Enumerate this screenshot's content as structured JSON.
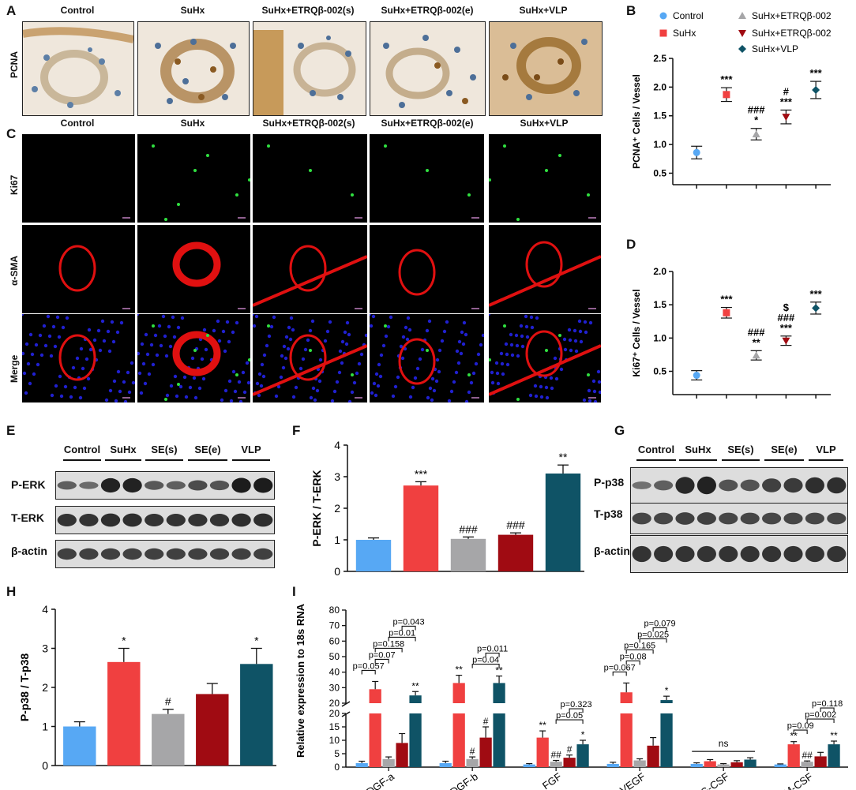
{
  "panels": {
    "A": "A",
    "B": "B",
    "C": "C",
    "D": "D",
    "E": "E",
    "F": "F",
    "G": "G",
    "H": "H",
    "I": "I"
  },
  "panel_a": {
    "columns": [
      "Control",
      "SuHx",
      "SuHx+ETRQβ-002(s)",
      "SuHx+ETRQβ-002(e)",
      "SuHx+VLP"
    ],
    "row_label": "PCNA"
  },
  "panel_c": {
    "columns": [
      "Control",
      "SuHx",
      "SuHx+ETRQβ-002(s)",
      "SuHx+ETRQβ-002(e)",
      "SuHx+VLP"
    ],
    "rows": [
      "Ki67",
      "α-SMA",
      "Merge"
    ]
  },
  "panel_e": {
    "groups": [
      "Control",
      "SuHx",
      "SE(s)",
      "SE(e)",
      "VLP"
    ],
    "rows": [
      "P-ERK",
      "T-ERK",
      "β-actin"
    ]
  },
  "panel_g": {
    "groups": [
      "Control",
      "SuHx",
      "SE(s)",
      "SE(e)",
      "VLP"
    ],
    "rows": [
      "P-p38",
      "T-p38",
      "β-actin"
    ]
  },
  "colors": {
    "control": "#57a8f4",
    "suhx": "#f04040",
    "se_s": "#a6a6a8",
    "se_e": "#a00b12",
    "vlp": "#0f5366",
    "fluo_red": "#e01010",
    "fluo_green": "#30e040",
    "fluo_blue": "#2020d0"
  },
  "chart_data": [
    {
      "id": "B",
      "type": "scatter",
      "ylabel": "PCNA⁺ Cells / Vessel",
      "ylim": [
        0.3,
        2.5
      ],
      "yticks": [
        0.5,
        1.0,
        1.5,
        2.0,
        2.5
      ],
      "legend": [
        "Control",
        "SuHx",
        "SuHx+ETRQβ-002",
        "SuHx+ETRQβ-002",
        "SuHx+VLP"
      ],
      "legend_position": "top",
      "series": [
        {
          "name": "Control",
          "mean": 0.86,
          "err": 0.11,
          "marker": "circle",
          "color": "#57a8f4",
          "annot": []
        },
        {
          "name": "SuHx",
          "mean": 1.87,
          "err": 0.12,
          "marker": "square",
          "color": "#f04040",
          "annot": [
            "***"
          ]
        },
        {
          "name": "SuHx+ETRQβ-002",
          "mean": 1.18,
          "err": 0.1,
          "marker": "triangle-up",
          "color": "#a6a6a8",
          "annot": [
            "*",
            "###"
          ]
        },
        {
          "name": "SuHx+ETRQβ-002",
          "mean": 1.48,
          "err": 0.12,
          "marker": "triangle-down",
          "color": "#a00b12",
          "annot": [
            "***",
            "#"
          ]
        },
        {
          "name": "SuHx+VLP",
          "mean": 1.95,
          "err": 0.15,
          "marker": "diamond",
          "color": "#0f5366",
          "annot": [
            "***"
          ]
        }
      ]
    },
    {
      "id": "D",
      "type": "scatter",
      "ylabel": "Ki67⁺ Cells / Vessel",
      "ylim": [
        0.15,
        2.0
      ],
      "yticks": [
        0.5,
        1.0,
        1.5,
        2.0
      ],
      "series": [
        {
          "mean": 0.44,
          "err": 0.07,
          "marker": "circle",
          "color": "#57a8f4",
          "annot": []
        },
        {
          "mean": 1.38,
          "err": 0.08,
          "marker": "square",
          "color": "#f04040",
          "annot": [
            "***"
          ]
        },
        {
          "mean": 0.74,
          "err": 0.07,
          "marker": "triangle-up",
          "color": "#a6a6a8",
          "annot": [
            "**",
            "###"
          ]
        },
        {
          "mean": 0.96,
          "err": 0.07,
          "marker": "triangle-down",
          "color": "#a00b12",
          "annot": [
            "***",
            "###",
            "$"
          ]
        },
        {
          "mean": 1.45,
          "err": 0.09,
          "marker": "diamond",
          "color": "#0f5366",
          "annot": [
            "***"
          ]
        }
      ]
    },
    {
      "id": "F",
      "type": "bar",
      "ylabel": "P-ERK / T-ERK",
      "ylim": [
        0,
        4
      ],
      "yticks": [
        0,
        1,
        2,
        3,
        4
      ],
      "values": [
        1.0,
        2.72,
        1.03,
        1.16,
        3.1
      ],
      "errors": [
        0.06,
        0.12,
        0.06,
        0.06,
        0.27
      ],
      "colors": [
        "#57a8f4",
        "#f04040",
        "#a6a6a8",
        "#a00b12",
        "#0f5366"
      ],
      "annot": [
        "",
        "***",
        "###",
        "###",
        "**"
      ]
    },
    {
      "id": "H",
      "type": "bar",
      "ylabel": "P-p38 / T-p38",
      "ylim": [
        0,
        4
      ],
      "yticks": [
        0,
        1,
        2,
        3,
        4
      ],
      "values": [
        1.0,
        2.65,
        1.32,
        1.83,
        2.6
      ],
      "errors": [
        0.12,
        0.35,
        0.12,
        0.27,
        0.4
      ],
      "colors": [
        "#57a8f4",
        "#f04040",
        "#a6a6a8",
        "#a00b12",
        "#0f5366"
      ],
      "annot": [
        "",
        "*",
        "#",
        "",
        "*"
      ]
    },
    {
      "id": "I",
      "type": "bar",
      "ylabel": "Relative expression to 18s RNA",
      "categories": [
        "PDGF-a",
        "PDGF-b",
        "FGF",
        "VEGF",
        "G-CSF",
        "M-CSF"
      ],
      "ylim_lower": [
        0,
        20
      ],
      "yticks_lower": [
        0,
        5,
        10,
        15,
        20
      ],
      "ylim_upper": [
        20,
        80
      ],
      "yticks_upper": [
        20,
        30,
        40,
        50,
        60,
        70,
        80
      ],
      "colors": [
        "#57a8f4",
        "#f04040",
        "#a6a6a8",
        "#a00b12",
        "#0f5366"
      ],
      "groups": [
        {
          "values": [
            1.5,
            29,
            3,
            9,
            25
          ],
          "errors": [
            0.7,
            5,
            0.8,
            3.5,
            2.5
          ],
          "annot": [
            "",
            "",
            "",
            "",
            "**"
          ],
          "brackets": [
            {
              "from": 0,
              "to": 1,
              "text": "p=0.057"
            },
            {
              "from": 1,
              "to": 2,
              "text": "p=0.07"
            },
            {
              "from": 1,
              "to": 3,
              "text": "p=0.158"
            },
            {
              "from": 2,
              "to": 4,
              "text": "p=0.01"
            },
            {
              "from": 3,
              "to": 4,
              "text": "p=0.043"
            }
          ]
        },
        {
          "values": [
            1.5,
            33,
            3,
            11,
            33
          ],
          "errors": [
            0.7,
            5,
            0.8,
            4,
            4.5
          ],
          "annot": [
            "",
            "**",
            "#",
            "#",
            "**"
          ],
          "brackets": [
            {
              "from": 2,
              "to": 4,
              "text": "p=0.04"
            },
            {
              "from": 3,
              "to": 4,
              "text": "p=0.011"
            }
          ]
        },
        {
          "values": [
            1,
            11,
            2,
            3.5,
            8.5
          ],
          "errors": [
            0.3,
            2.5,
            0.5,
            1,
            1.5
          ],
          "annot": [
            "",
            "**",
            "##",
            "#",
            "*"
          ],
          "brackets": [
            {
              "from": 2,
              "to": 4,
              "text": "p=0.05"
            },
            {
              "from": 3,
              "to": 4,
              "text": "p=0.323"
            }
          ]
        },
        {
          "values": [
            1.2,
            27,
            2.5,
            8,
            22
          ],
          "errors": [
            0.6,
            6,
            0.6,
            3,
            2.5
          ],
          "annot": [
            "",
            "",
            "",
            "",
            "*"
          ],
          "brackets": [
            {
              "from": 0,
              "to": 1,
              "text": "p=0.067"
            },
            {
              "from": 1,
              "to": 2,
              "text": "p=0.08"
            },
            {
              "from": 1,
              "to": 3,
              "text": "p=0.165"
            },
            {
              "from": 2,
              "to": 4,
              "text": "p=0.025"
            },
            {
              "from": 3,
              "to": 4,
              "text": "p=0.079"
            }
          ]
        },
        {
          "values": [
            1.2,
            2.2,
            1,
            1.8,
            2.8
          ],
          "errors": [
            0.4,
            0.6,
            0.3,
            0.6,
            0.7
          ],
          "annot": [
            "",
            "",
            "",
            "",
            ""
          ],
          "brackets": [
            {
              "from": 0,
              "to": 4,
              "text": "ns",
              "style": "line"
            }
          ]
        },
        {
          "values": [
            1,
            8.5,
            2,
            4,
            8.5
          ],
          "errors": [
            0.2,
            1,
            0.3,
            1.5,
            1.2
          ],
          "annot": [
            "",
            "**",
            "##",
            "",
            "**"
          ],
          "brackets": [
            {
              "from": 1,
              "to": 2,
              "text": "p=0.09"
            },
            {
              "from": 2,
              "to": 4,
              "text": "p=0.002"
            },
            {
              "from": 3,
              "to": 4,
              "text": "p=0.118"
            }
          ]
        }
      ]
    }
  ]
}
